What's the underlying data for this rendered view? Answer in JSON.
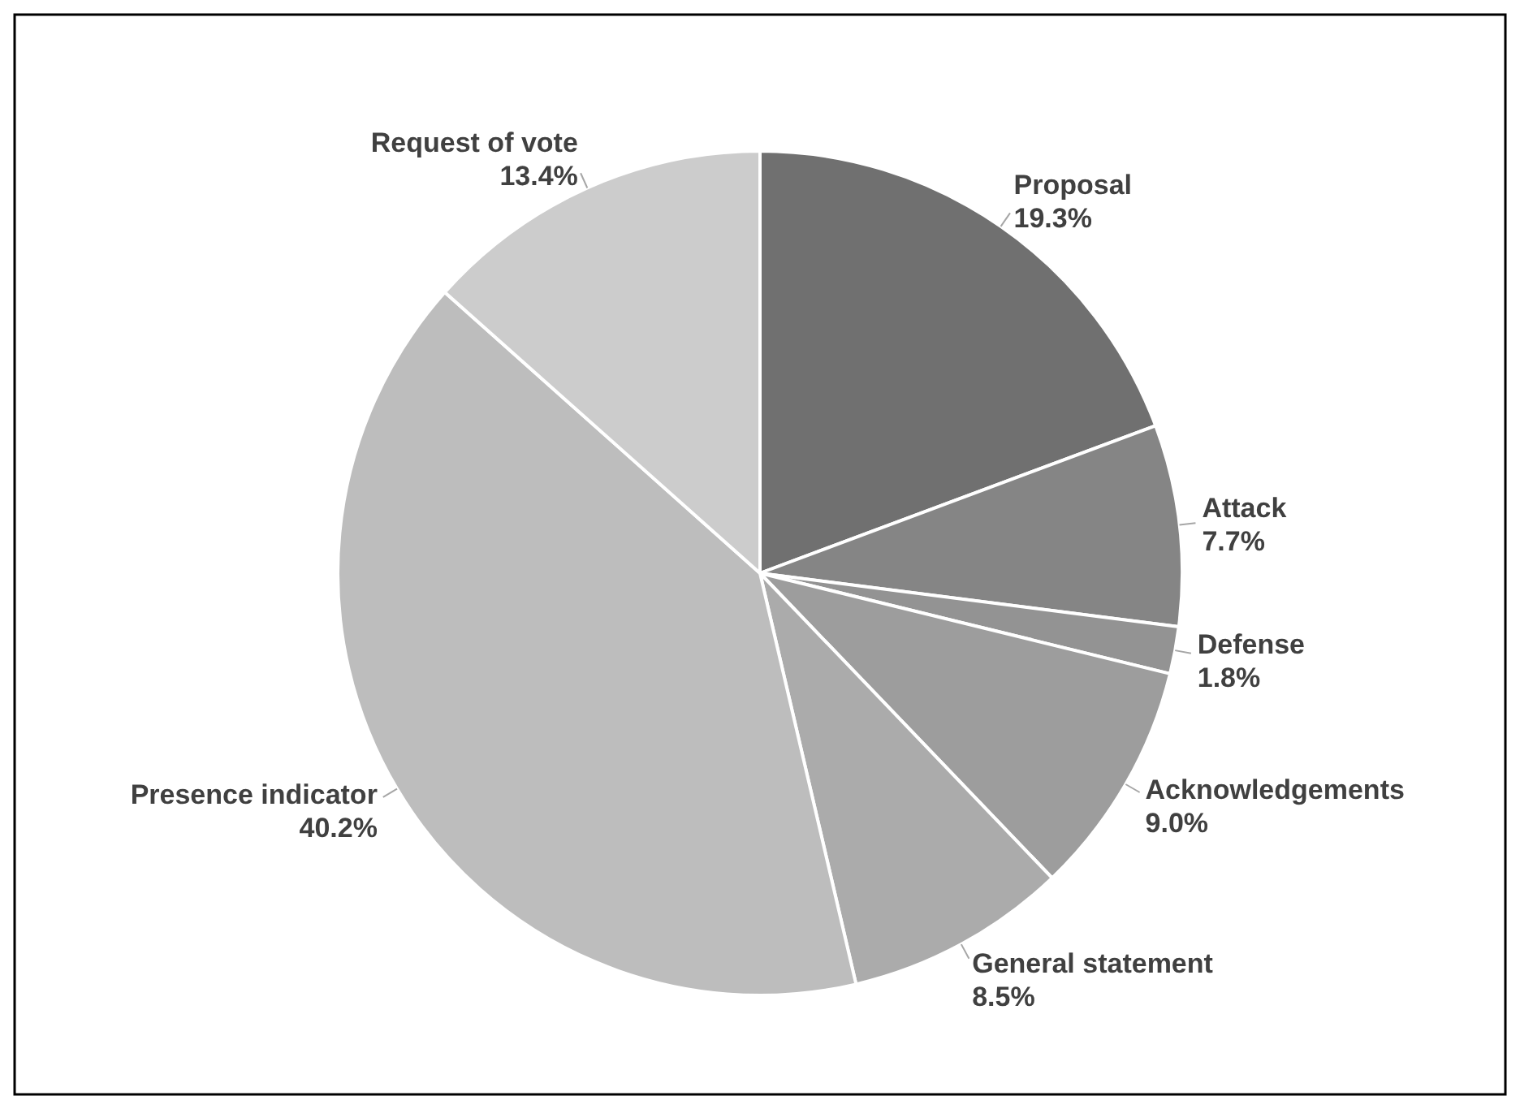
{
  "chart_data": {
    "type": "pie",
    "categories": [
      "Proposal",
      "Attack",
      "Defense",
      "Acknowledgements",
      "General statement",
      "Presence indicator",
      "Request of vote"
    ],
    "values": [
      19.3,
      7.7,
      1.8,
      9.0,
      8.5,
      40.2,
      13.4
    ],
    "value_labels": [
      "19.3%",
      "7.7%",
      "1.8%",
      "9.0%",
      "8.5%",
      "40.2%",
      "13.4%"
    ],
    "colors": [
      "#707070",
      "#858585",
      "#939393",
      "#9d9d9d",
      "#ababab",
      "#bdbdbd",
      "#cccccc"
    ]
  }
}
